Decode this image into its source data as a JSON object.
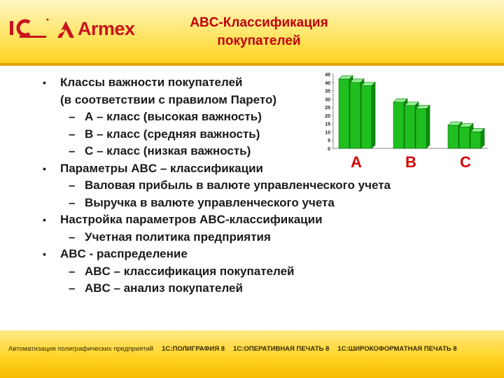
{
  "header": {
    "title_line1": "ABC-Классификация",
    "title_line2": "покупателей",
    "brand": "Armex",
    "logo_1c": "1С",
    "colors": {
      "band": "#ffd21f",
      "title": "#c0000a",
      "brand": "#c8141e"
    }
  },
  "content": {
    "b1_line1": "Классы важности покупателей",
    "b1_line2": "(в соответствии с правилом Парето)",
    "b1_sub1": "А – класс (высокая важность)",
    "b1_sub2": "В – класс (средняя важность)",
    "b1_sub3": "С – класс (низкая важность)",
    "b2": "Параметры ABC – классификации",
    "b2_sub1": "Валовая прибыль в валюте управленческого учета",
    "b2_sub2": "Выручка в валюте управленческого учета",
    "b3": "Настройка параметров ABC-классификации",
    "b3_sub1": "Учетная политика предприятия",
    "b4": "ABC - распределение",
    "b4_sub1": "ABC – классификация покупателей",
    "b4_sub2": "ABC – анализ покупателей",
    "bullet": "•",
    "dash": "–"
  },
  "chart_data": {
    "type": "bar",
    "series": [
      {
        "name": "A",
        "values": [
          42,
          40,
          38
        ]
      },
      {
        "name": "B",
        "values": [
          28,
          26,
          24
        ]
      },
      {
        "name": "C",
        "values": [
          14,
          13,
          10
        ]
      }
    ],
    "ylim": [
      0,
      45
    ],
    "yticks": [
      "0",
      "5",
      "10",
      "15",
      "20",
      "25",
      "30",
      "35",
      "40",
      "45"
    ],
    "class_labels": [
      "A",
      "B",
      "C"
    ],
    "bar_color": "#1fbf1f",
    "label_color": "#d40000"
  },
  "footer": {
    "text": "Автоматизация полиграфических предприятий",
    "item1": "1С:ПОЛИГРАФИЯ 8",
    "item2": "1С:ОПЕРАТИВНАЯ ПЕЧАТЬ 8",
    "item3": "1С:ШИРОКОФОРМАТНАЯ ПЕЧАТЬ 8"
  }
}
